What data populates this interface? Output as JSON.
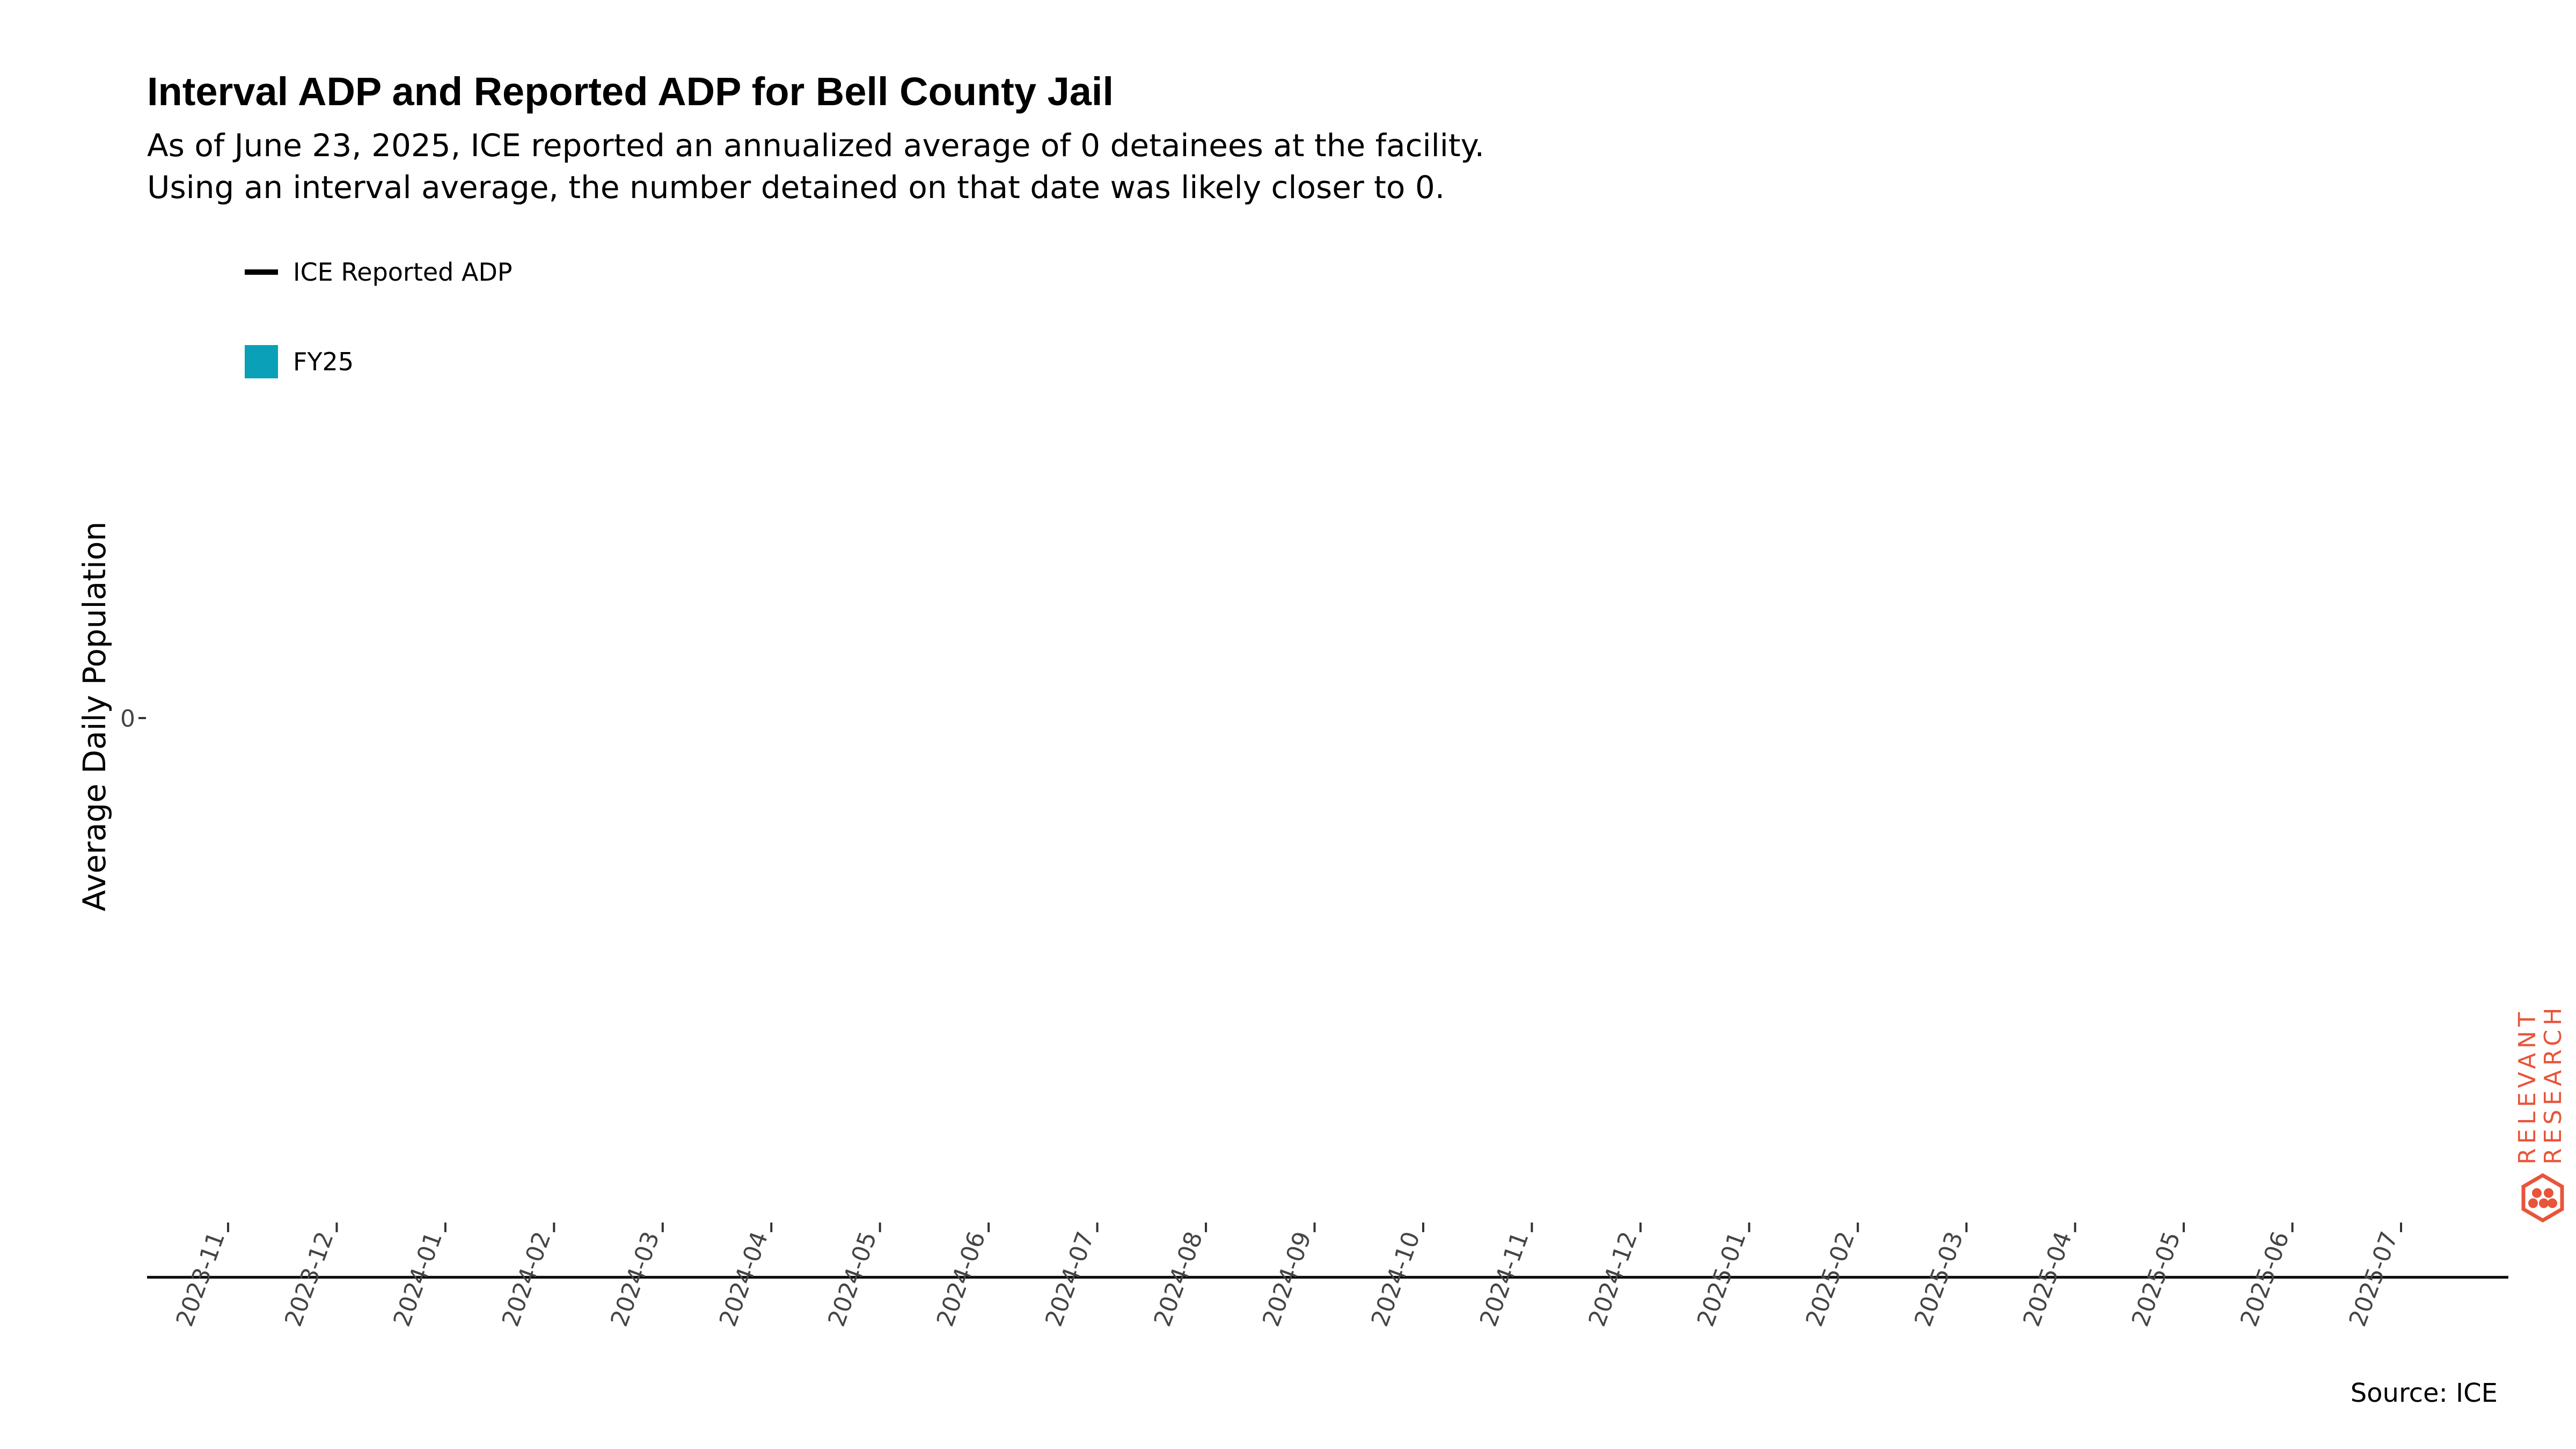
{
  "chart_data": {
    "type": "area",
    "title": "Interval ADP and Reported ADP for Bell County Jail",
    "subtitle_lines": [
      "As of June 23, 2025, ICE reported an annualized average of 0 detainees at the facility.",
      "Using an interval average, the number detained on that date was likely closer to 0."
    ],
    "ylabel": "Average Daily Population",
    "xlabel": "",
    "x_ticks": [
      "2023-11",
      "2023-12",
      "2024-01",
      "2024-02",
      "2024-03",
      "2024-04",
      "2024-05",
      "2024-06",
      "2024-07",
      "2024-08",
      "2024-09",
      "2024-10",
      "2024-11",
      "2024-12",
      "2025-01",
      "2025-02",
      "2025-03",
      "2025-04",
      "2025-05",
      "2025-06",
      "2025-07"
    ],
    "y_ticks": [
      "0"
    ],
    "legend": [
      {
        "label": "ICE Reported ADP",
        "kind": "line",
        "color": "#000000"
      },
      {
        "label": "FY25",
        "kind": "fill",
        "color": "#0aa0b8"
      }
    ],
    "legend_placement": "top-left",
    "grid": false,
    "series": [],
    "source": "Source: ICE"
  },
  "logo": {
    "line1": "RELEVANT",
    "line2": "RESEARCH",
    "color": "#e8553a"
  }
}
